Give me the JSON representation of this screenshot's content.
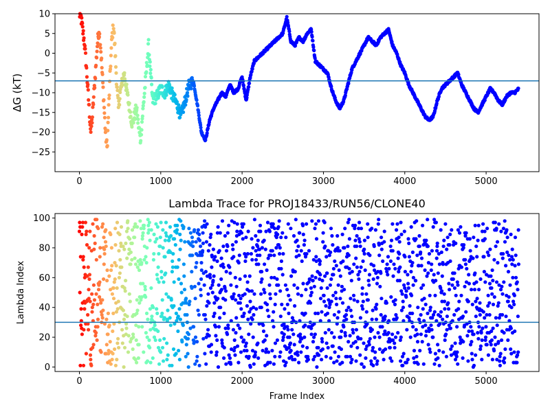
{
  "chart_data": [
    {
      "type": "scatter",
      "title": "",
      "xlabel": "",
      "ylabel": "ΔG (kT)",
      "xlim": [
        -300,
        5650
      ],
      "ylim": [
        -30,
        10
      ],
      "xticks": [
        0,
        1000,
        2000,
        3000,
        4000,
        5000
      ],
      "yticks": [
        -25,
        -20,
        -15,
        -10,
        -5,
        0,
        5,
        10
      ],
      "hline": -7,
      "hline_color": "#1f77b4",
      "colormap": "rainbow",
      "grid": false,
      "series": [
        {
          "points": [
            [
              0,
              10
            ],
            [
              20,
              9
            ],
            [
              40,
              6
            ],
            [
              60,
              3
            ],
            [
              80,
              -2
            ],
            [
              100,
              -8
            ],
            [
              120,
              -14
            ],
            [
              140,
              -20
            ],
            [
              160,
              -16
            ],
            [
              180,
              -10
            ],
            [
              200,
              -4
            ],
            [
              220,
              2
            ],
            [
              240,
              6
            ],
            [
              260,
              2
            ],
            [
              280,
              -5
            ],
            [
              300,
              -12
            ],
            [
              320,
              -20
            ],
            [
              340,
              -24
            ],
            [
              360,
              -14
            ],
            [
              380,
              -4
            ],
            [
              400,
              4
            ],
            [
              420,
              7
            ],
            [
              440,
              0
            ],
            [
              460,
              -8
            ],
            [
              480,
              -14
            ],
            [
              500,
              -10
            ],
            [
              550,
              -5
            ],
            [
              600,
              -12
            ],
            [
              650,
              -18
            ],
            [
              700,
              -14
            ],
            [
              750,
              -22
            ],
            [
              800,
              -10
            ],
            [
              850,
              2
            ],
            [
              900,
              -12
            ],
            [
              950,
              -11
            ],
            [
              1000,
              -9
            ],
            [
              1050,
              -10
            ],
            [
              1100,
              -8
            ],
            [
              1150,
              -11
            ],
            [
              1200,
              -13
            ],
            [
              1250,
              -16
            ],
            [
              1300,
              -12
            ],
            [
              1350,
              -8
            ],
            [
              1400,
              -7
            ],
            [
              1450,
              -13
            ],
            [
              1500,
              -20
            ],
            [
              1550,
              -22
            ],
            [
              1600,
              -17
            ],
            [
              1650,
              -14
            ],
            [
              1700,
              -12
            ],
            [
              1750,
              -10
            ],
            [
              1800,
              -11
            ],
            [
              1850,
              -8
            ],
            [
              1900,
              -10
            ],
            [
              1950,
              -9
            ],
            [
              2000,
              -6
            ],
            [
              2050,
              -12
            ],
            [
              2100,
              -6
            ],
            [
              2150,
              -2
            ],
            [
              2200,
              -1
            ],
            [
              2250,
              0
            ],
            [
              2300,
              1
            ],
            [
              2350,
              2
            ],
            [
              2400,
              3
            ],
            [
              2450,
              4
            ],
            [
              2500,
              5
            ],
            [
              2550,
              9
            ],
            [
              2600,
              3
            ],
            [
              2650,
              2
            ],
            [
              2700,
              4
            ],
            [
              2750,
              3
            ],
            [
              2800,
              5
            ],
            [
              2850,
              6
            ],
            [
              2900,
              -2
            ],
            [
              2950,
              -3
            ],
            [
              3000,
              -4
            ],
            [
              3050,
              -5
            ],
            [
              3100,
              -9
            ],
            [
              3150,
              -12
            ],
            [
              3200,
              -14
            ],
            [
              3250,
              -12
            ],
            [
              3300,
              -8
            ],
            [
              3350,
              -4
            ],
            [
              3400,
              -2
            ],
            [
              3450,
              0
            ],
            [
              3500,
              2
            ],
            [
              3550,
              4
            ],
            [
              3600,
              3
            ],
            [
              3650,
              2
            ],
            [
              3700,
              4
            ],
            [
              3750,
              5
            ],
            [
              3800,
              6
            ],
            [
              3850,
              2
            ],
            [
              3900,
              0
            ],
            [
              3950,
              -3
            ],
            [
              4000,
              -5
            ],
            [
              4050,
              -8
            ],
            [
              4100,
              -10
            ],
            [
              4150,
              -12
            ],
            [
              4200,
              -14
            ],
            [
              4250,
              -16
            ],
            [
              4300,
              -17
            ],
            [
              4350,
              -16
            ],
            [
              4400,
              -12
            ],
            [
              4450,
              -9
            ],
            [
              4500,
              -8
            ],
            [
              4550,
              -7
            ],
            [
              4600,
              -6
            ],
            [
              4650,
              -5
            ],
            [
              4700,
              -8
            ],
            [
              4750,
              -10
            ],
            [
              4800,
              -12
            ],
            [
              4850,
              -14
            ],
            [
              4900,
              -15
            ],
            [
              4950,
              -13
            ],
            [
              5000,
              -11
            ],
            [
              5050,
              -9
            ],
            [
              5100,
              -10
            ],
            [
              5150,
              -12
            ],
            [
              5200,
              -13
            ],
            [
              5250,
              -11
            ],
            [
              5300,
              -10
            ],
            [
              5350,
              -10
            ],
            [
              5400,
              -9
            ]
          ]
        }
      ]
    },
    {
      "type": "scatter",
      "title": "Lambda Trace for PROJ18433/RUN56/CLONE40",
      "xlabel": "Frame Index",
      "ylabel": "Lambda Index",
      "xlim": [
        -300,
        5650
      ],
      "ylim": [
        -3,
        103
      ],
      "xticks": [
        0,
        1000,
        2000,
        3000,
        4000,
        5000
      ],
      "yticks": [
        0,
        20,
        40,
        60,
        80,
        100
      ],
      "hline": 30,
      "hline_color": "#1f77b4",
      "colormap": "rainbow",
      "grid": false,
      "x_range": [
        0,
        5400
      ],
      "y_range": [
        0,
        99
      ],
      "density_note": "approximately uniform random lambda indices across frames"
    }
  ]
}
